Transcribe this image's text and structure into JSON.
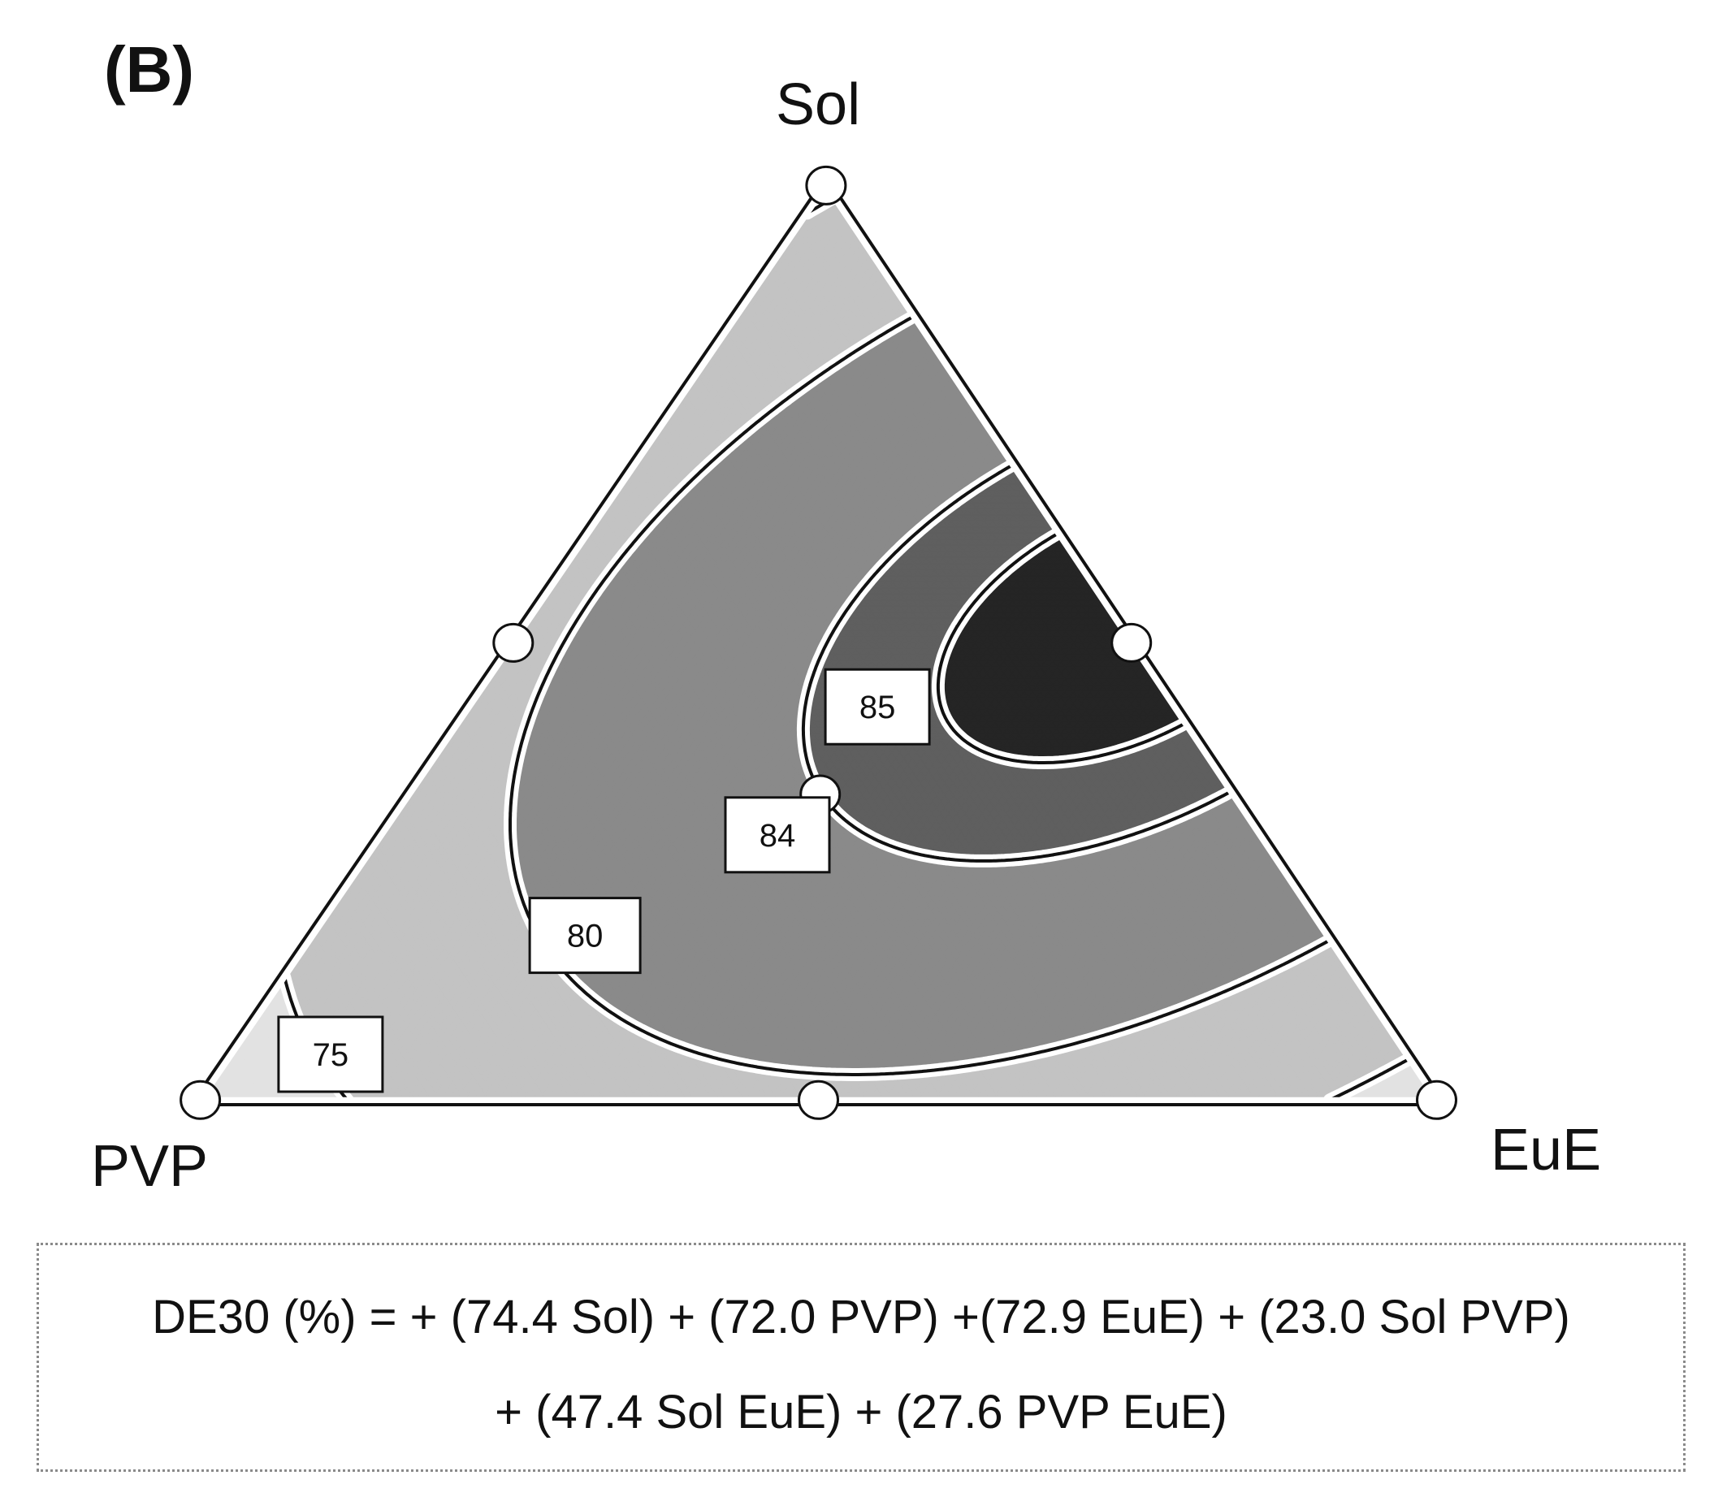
{
  "panel_label": "(B)",
  "chart_data": {
    "type": "ternary-contour",
    "vertices": {
      "top": "Sol",
      "bottom_left": "PVP",
      "bottom_right": "EuE"
    },
    "contour_levels": [
      75,
      80,
      84,
      85
    ],
    "fill_colors": [
      "#e2e2e2",
      "#c3c3c3",
      "#8a8a8a",
      "#5f5f5f",
      "#252525"
    ],
    "design_points": [
      {
        "Sol": 1,
        "PVP": 0,
        "EuE": 0
      },
      {
        "Sol": 0,
        "PVP": 1,
        "EuE": 0
      },
      {
        "Sol": 0,
        "PVP": 0,
        "EuE": 1
      },
      {
        "Sol": 0.5,
        "PVP": 0.5,
        "EuE": 0
      },
      {
        "Sol": 0.5,
        "PVP": 0,
        "EuE": 0.5
      },
      {
        "Sol": 0,
        "PVP": 0.5,
        "EuE": 0.5
      },
      {
        "Sol": 0.333,
        "PVP": 0.333,
        "EuE": 0.333
      }
    ],
    "model": {
      "response": "DE30 (%)",
      "terms": [
        {
          "term": "Sol",
          "coef": 74.4
        },
        {
          "term": "PVP",
          "coef": 72.0
        },
        {
          "term": "EuE",
          "coef": 72.9
        },
        {
          "term": "Sol PVP",
          "coef": 23.0
        },
        {
          "term": "Sol EuE",
          "coef": 47.4
        },
        {
          "term": "PVP EuE",
          "coef": 27.6
        }
      ]
    }
  },
  "equation": {
    "line1": "DE30 (%) = + (74.4 Sol) + (72.0 PVP) +(72.9 EuE) + (23.0  Sol PVP)",
    "line2": "+ (47.4 Sol EuE) + (27.6 PVP EuE)"
  }
}
